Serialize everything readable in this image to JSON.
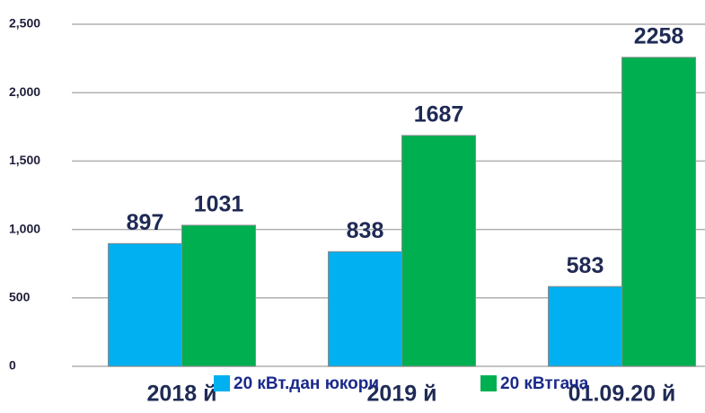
{
  "chart_data": {
    "type": "bar",
    "categories": [
      "2018 й",
      "2019 й",
      "01.09.20 й"
    ],
    "series": [
      {
        "name": "20 кВт.дан юкори",
        "color": "#00b0f0",
        "values": [
          897,
          838,
          583
        ]
      },
      {
        "name": "20 кВтгача",
        "color": "#00b050",
        "values": [
          1031,
          1687,
          2258
        ]
      }
    ],
    "ylim": [
      0,
      2500
    ],
    "yticks": [
      0,
      500,
      {
        "value": 1000,
        "label": "1,000"
      },
      {
        "value": 1500,
        "label": "1,500"
      },
      {
        "value": 2000,
        "label": "2,000"
      },
      {
        "value": 2500,
        "label": "2,500"
      }
    ],
    "grid": true,
    "legend": "bottom"
  }
}
